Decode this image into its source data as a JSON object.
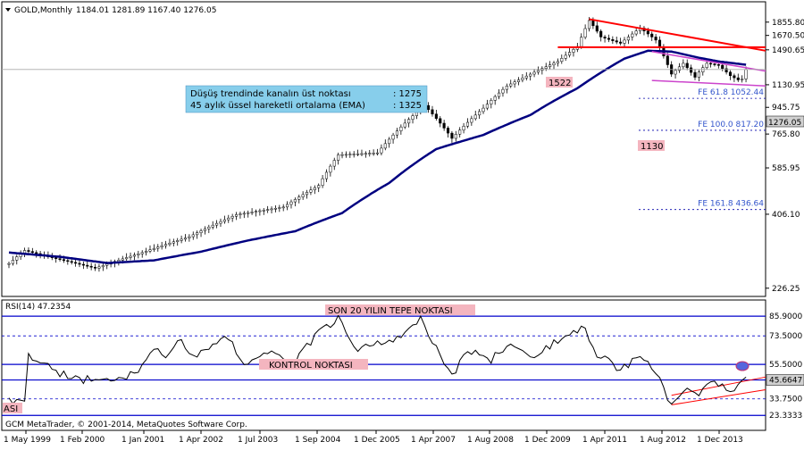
{
  "header": {
    "symbol": "GOLD,Monthly",
    "ohlc": "1184.01 1281.89 1167.40 1276.05"
  },
  "annotations": {
    "info_line1_label": "Düşüş trendinde kanalın üst noktası",
    "info_line1_value": ": 1275",
    "info_line2_label": "45 aylık üssel hareketli ortalama (EMA)",
    "info_line2_value": ": 1325",
    "label_1522": "1522",
    "label_1130": "1130",
    "fe_618": "FE 61.8 1052.44",
    "fe_100": "FE 100.0 817.20",
    "fe_1618": "FE 161.8 436.64",
    "current_price": "1276.05"
  },
  "rsi_panel": {
    "title": "RSI(14) 47.2354",
    "label_top": "SON 20 YILIN TEPE NOKTASI",
    "label_control": "KONTROL NOKTASI",
    "label_left": "ASI",
    "current_value": "45.6647"
  },
  "footer": {
    "copyright": "GCM MetaTrader, © 2001-2014, MetaQuotes Software Corp."
  },
  "chart_data": [
    {
      "type": "candlestick",
      "title": "",
      "y_scale": "log",
      "ylim": [
        215,
        2060
      ],
      "y_ticks": [
        "1855.80",
        "1670.50",
        "1490.65",
        "1276.05",
        "1130.95",
        "945.75",
        "765.80",
        "585.95",
        "406.10",
        "226.25"
      ],
      "x_ticks": [
        "1 May 1999",
        "1 Feb 2000",
        "1 Jan 2001",
        "1 Apr 2002",
        "1 Jul 2003",
        "1 Sep 2004",
        "1 Dec 2005",
        "1 Apr 2007",
        "1 Aug 2008",
        "1 Dec 2009",
        "1 Apr 2011",
        "1 Aug 2012",
        "1 Dec 2013"
      ],
      "price_path": [
        [
          "1999-05",
          275
        ],
        [
          "1999-09",
          305
        ],
        [
          "2000-03",
          290
        ],
        [
          "2001-03",
          265
        ],
        [
          "2002-03",
          300
        ],
        [
          "2003-03",
          340
        ],
        [
          "2004-03",
          405
        ],
        [
          "2005-03",
          430
        ],
        [
          "2005-12",
          510
        ],
        [
          "2006-05",
          650
        ],
        [
          "2007-03",
          660
        ],
        [
          "2008-03",
          960
        ],
        [
          "2008-10",
          740
        ],
        [
          "2009-06",
          940
        ],
        [
          "2009-12",
          1120
        ],
        [
          "2010-06",
          1230
        ],
        [
          "2011-01",
          1360
        ],
        [
          "2011-06",
          1530
        ],
        [
          "2011-09",
          1880
        ],
        [
          "2011-12",
          1650
        ],
        [
          "2012-05",
          1570
        ],
        [
          "2012-10",
          1770
        ],
        [
          "2013-02",
          1610
        ],
        [
          "2013-06",
          1230
        ],
        [
          "2013-09",
          1340
        ],
        [
          "2013-12",
          1200
        ],
        [
          "2014-01",
          1250
        ],
        [
          "2014-03",
          1340
        ],
        [
          "2014-06",
          1320
        ],
        [
          "2014-09",
          1215
        ],
        [
          "2014-11",
          1175
        ],
        [
          "2014-12",
          1184.01
        ],
        [
          "2015-01",
          1276.05
        ]
      ],
      "ema45_path": [
        [
          "1999-05",
          300
        ],
        [
          "2000-06",
          290
        ],
        [
          "2001-06",
          276
        ],
        [
          "2002-06",
          282
        ],
        [
          "2003-06",
          302
        ],
        [
          "2004-06",
          330
        ],
        [
          "2005-06",
          355
        ],
        [
          "2006-06",
          410
        ],
        [
          "2007-06",
          520
        ],
        [
          "2008-06",
          680
        ],
        [
          "2009-06",
          760
        ],
        [
          "2010-06",
          890
        ],
        [
          "2011-06",
          1100
        ],
        [
          "2012-06",
          1390
        ],
        [
          "2012-12",
          1480
        ],
        [
          "2013-06",
          1470
        ],
        [
          "2014-01",
          1400
        ],
        [
          "2014-06",
          1360
        ],
        [
          "2015-01",
          1325
        ]
      ],
      "trend_lines": [
        {
          "color": "#ff0000",
          "from": [
            "2011-09",
            1900
          ],
          "to": [
            "2015-06",
            1480
          ]
        },
        {
          "color": "#ff0000",
          "from": [
            "2011-01",
            1522
          ],
          "to": [
            "2015-06",
            1522
          ]
        },
        {
          "color": "#cc44cc",
          "from": [
            "2013-01",
            1470
          ],
          "to": [
            "2015-06",
            1260
          ]
        },
        {
          "color": "#cc44cc",
          "from": [
            "2013-01",
            1170
          ],
          "to": [
            "2015-06",
            1120
          ]
        }
      ],
      "levels": [
        {
          "label": "FE 61.8 1052.44",
          "value": 1052.44
        },
        {
          "label": "FE 100.0 817.20",
          "value": 817.2
        },
        {
          "label": "FE 161.8 436.64",
          "value": 436.64
        }
      ]
    },
    {
      "type": "line",
      "title": "RSI(14)",
      "ylim": [
        15,
        95
      ],
      "y_ticks": [
        "85.9000",
        "73.5000",
        "55.5000",
        "45.6647",
        "33.7500",
        "23.3333"
      ],
      "levels": [
        85.9,
        73.5,
        55.5,
        45.66,
        33.75,
        23.33
      ],
      "values": [
        [
          "1999-05",
          33
        ],
        [
          "1999-08",
          31
        ],
        [
          "1999-09",
          34
        ],
        [
          "1999-10",
          62
        ],
        [
          "2000-01",
          56
        ],
        [
          "2000-06",
          50
        ],
        [
          "2000-12",
          45
        ],
        [
          "2001-03",
          48
        ],
        [
          "2001-08",
          46
        ],
        [
          "2001-12",
          49
        ],
        [
          "2002-03",
          53
        ],
        [
          "2002-06",
          66
        ],
        [
          "2002-09",
          60
        ],
        [
          "2003-01",
          71
        ],
        [
          "2003-04",
          59
        ],
        [
          "2003-09",
          68
        ],
        [
          "2004-01",
          72
        ],
        [
          "2004-05",
          57
        ],
        [
          "2004-12",
          63
        ],
        [
          "2005-05",
          55
        ],
        [
          "2005-12",
          75
        ],
        [
          "2006-05",
          84
        ],
        [
          "2006-10",
          65
        ],
        [
          "2007-05",
          69
        ],
        [
          "2007-12",
          78
        ],
        [
          "2008-02",
          84
        ],
        [
          "2008-03",
          79
        ],
        [
          "2008-10",
          48
        ],
        [
          "2009-02",
          64
        ],
        [
          "2009-08",
          58
        ],
        [
          "2009-12",
          68
        ],
        [
          "2010-06",
          60
        ],
        [
          "2011-01",
          70
        ],
        [
          "2011-08",
          80
        ],
        [
          "2011-10",
          64
        ],
        [
          "2012-05",
          52
        ],
        [
          "2012-10",
          60
        ],
        [
          "2013-02",
          50
        ],
        [
          "2013-06",
          30
        ],
        [
          "2013-10",
          40
        ],
        [
          "2014-01",
          38
        ],
        [
          "2014-03",
          45
        ],
        [
          "2014-07",
          41
        ],
        [
          "2014-10",
          39
        ],
        [
          "2015-01",
          47.24
        ]
      ]
    }
  ]
}
